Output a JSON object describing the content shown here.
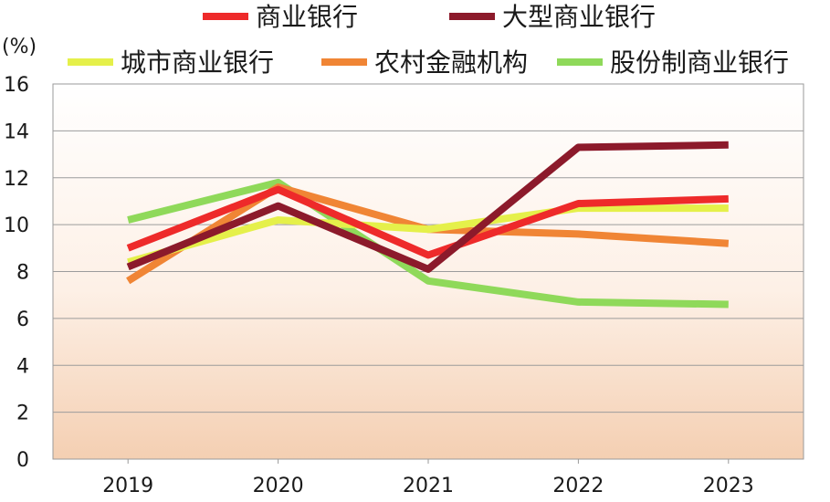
{
  "chart_data": {
    "type": "line",
    "title": "",
    "ylabel": "(%)",
    "xlabel": "",
    "ylim": [
      0,
      16
    ],
    "yticks": [
      0,
      2,
      4,
      6,
      8,
      10,
      12,
      14,
      16
    ],
    "categories": [
      "2019",
      "2020",
      "2021",
      "2022",
      "2023"
    ],
    "legend_position": "top",
    "series": [
      {
        "name": "商业银行",
        "color": "#ee2a2a",
        "values": [
          9.0,
          11.5,
          8.7,
          10.9,
          11.1
        ]
      },
      {
        "name": "大型商业银行",
        "color": "#8c1a2b",
        "values": [
          8.2,
          10.8,
          8.1,
          13.3,
          13.4
        ]
      },
      {
        "name": "城市商业银行",
        "color": "#e5f04a",
        "values": [
          8.4,
          10.2,
          9.8,
          10.7,
          10.7
        ]
      },
      {
        "name": "农村金融机构",
        "color": "#f08535",
        "values": [
          7.6,
          11.6,
          9.8,
          9.6,
          9.2
        ]
      },
      {
        "name": "股份制商业银行",
        "color": "#8fd95a",
        "values": [
          10.2,
          11.8,
          7.6,
          6.7,
          6.6
        ]
      }
    ]
  }
}
